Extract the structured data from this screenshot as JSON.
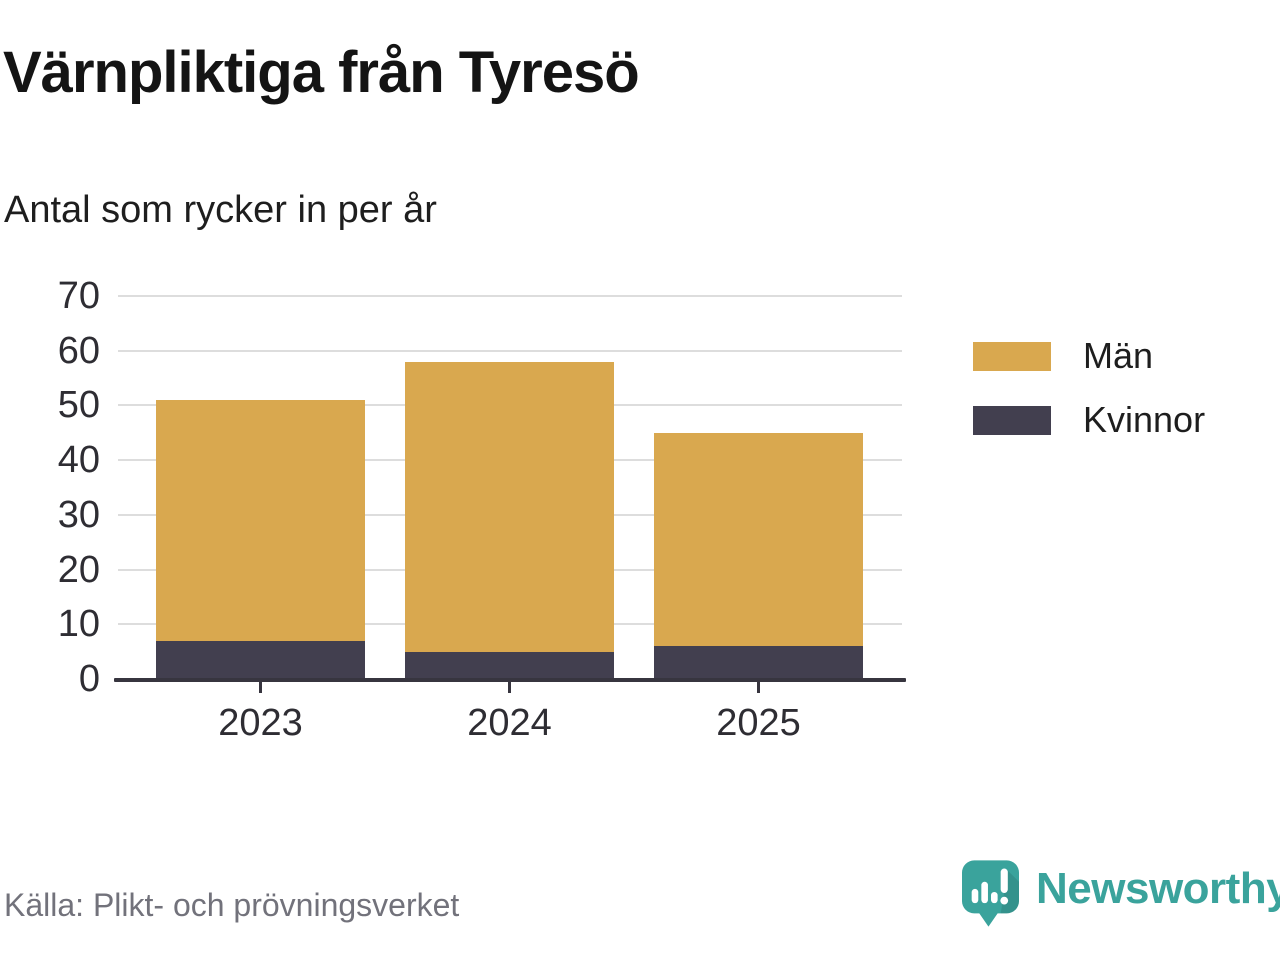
{
  "header": {
    "title": "Värnpliktiga från Tyresö",
    "subtitle": "Antal som rycker in per år"
  },
  "chart_data": {
    "type": "bar",
    "stacked": true,
    "title": "Värnpliktiga från Tyresö",
    "subtitle": "Antal som rycker in per år",
    "categories": [
      "2023",
      "2024",
      "2025"
    ],
    "series": [
      {
        "key": "women",
        "name": "Kvinnor",
        "color": "#423F4F",
        "values": [
          7,
          5,
          6
        ]
      },
      {
        "key": "men",
        "name": "Män",
        "color": "#D9A84F",
        "values": [
          44,
          53,
          39
        ]
      }
    ],
    "xlabel": "",
    "ylabel": "",
    "ylim": [
      0,
      70
    ],
    "yticks": [
      0,
      10,
      20,
      30,
      40,
      50,
      60,
      70
    ],
    "grid": true,
    "legend_position": "right"
  },
  "legend": {
    "items": [
      {
        "key": "men",
        "label": "Män",
        "color": "#D9A84F"
      },
      {
        "key": "women",
        "label": "Kvinnor",
        "color": "#423F4F"
      }
    ]
  },
  "footer": {
    "source": "Källa: Plikt- och prövningsverket",
    "brand": "Newsworthy"
  },
  "colors": {
    "men": "#D9A84F",
    "women": "#423F4F",
    "gridline": "#DDDDDD",
    "axis": "#37353F",
    "brand_teal": "#3AA39C",
    "source_text": "#72727B"
  }
}
